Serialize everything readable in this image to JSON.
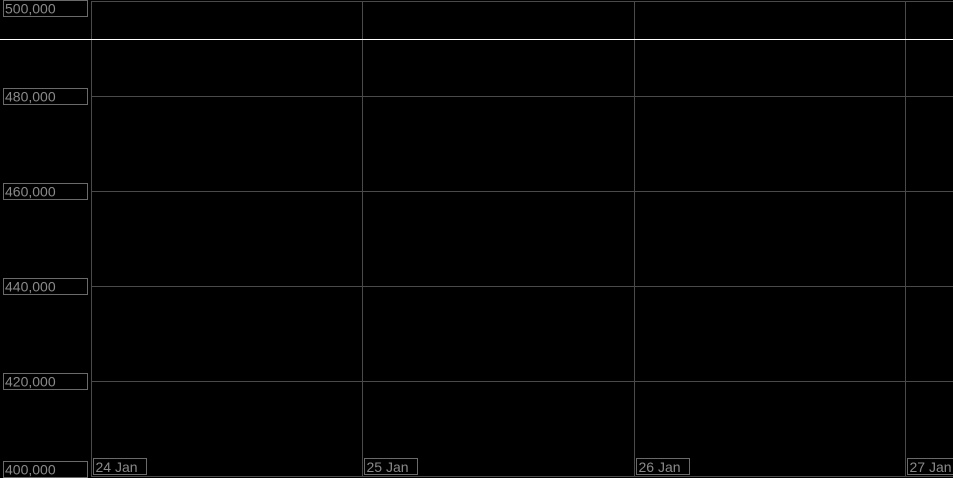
{
  "chart_data": {
    "type": "line",
    "title": "",
    "xlabel": "",
    "ylabel": "",
    "x_ticks": [
      "24 Jan",
      "25 Jan",
      "26 Jan",
      "27 Jan"
    ],
    "y_ticks": [
      "500,000",
      "480,000",
      "460,000",
      "440,000",
      "420,000",
      "400,000"
    ],
    "y_tick_values": [
      500000,
      480000,
      460000,
      440000,
      420000,
      400000
    ],
    "ylim": [
      400000,
      500000
    ],
    "grid": true,
    "series": [
      {
        "type": "horizontal-line",
        "value": 492000,
        "color": "#ffffff"
      }
    ],
    "colors": {
      "background": "#000000",
      "grid": "#4a4a4a",
      "label_text": "#8a8a8a",
      "label_border": "#6a6a6a"
    }
  }
}
